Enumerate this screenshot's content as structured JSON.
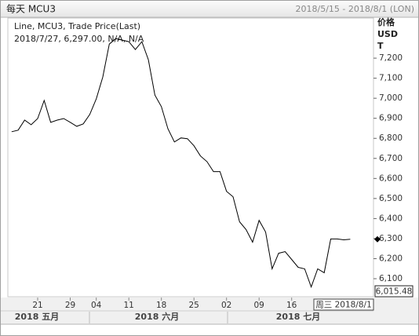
{
  "chart_data": {
    "type": "line",
    "title": "每天 MCU3",
    "subtitle": "2018/5/15 - 2018/8/1 (LON)",
    "y_axis_label": [
      "价格",
      "USD",
      "T"
    ],
    "annotation": "2018/7/27, 6,297.00, N/A, N/A",
    "categories": [
      null,
      null,
      null,
      null,
      "21",
      null,
      null,
      null,
      null,
      "29",
      null,
      null,
      null,
      "04",
      null,
      null,
      null,
      null,
      "11",
      null,
      null,
      null,
      null,
      "18",
      null,
      null,
      null,
      null,
      "25",
      null,
      null,
      null,
      null,
      "02",
      null,
      null,
      null,
      null,
      "09",
      null,
      null,
      null,
      null,
      "16",
      null,
      null,
      null,
      null,
      null,
      null,
      null,
      null,
      null
    ],
    "month_labels": [
      "2018 五月",
      "2018 六月",
      "2018 七月"
    ],
    "series": [
      {
        "name": "Line, MCU3, Trade Price(Last)",
        "color": "#000000",
        "values": [
          6833,
          6841,
          6891,
          6868,
          6899,
          6989,
          6880,
          6891,
          6899,
          6880,
          6860,
          6872,
          6919,
          6997,
          7106,
          7270,
          7298,
          7290,
          7282,
          7243,
          7282,
          7192,
          7016,
          6958,
          6848,
          6782,
          6802,
          6798,
          6763,
          6712,
          6684,
          6634,
          6634,
          6536,
          6509,
          6384,
          6345,
          6282,
          6391,
          6333,
          6149,
          6227,
          6235,
          6196,
          6157,
          6149,
          6059,
          6149,
          6130,
          6298,
          6298,
          6294,
          6297
        ]
      }
    ],
    "ylim": [
      6010,
      7400
    ],
    "yticks": [
      {
        "value": 6100,
        "label": "6,100"
      },
      {
        "value": 6200,
        "label": "6,200"
      },
      {
        "value": 6300,
        "label": "6,300"
      },
      {
        "value": 6400,
        "label": "6,400"
      },
      {
        "value": 6500,
        "label": "6,500"
      },
      {
        "value": 6600,
        "label": "6,600"
      },
      {
        "value": 6700,
        "label": "6,700"
      },
      {
        "value": 6800,
        "label": "6,800"
      },
      {
        "value": 6900,
        "label": "6,900"
      },
      {
        "value": 7000,
        "label": "7,000"
      },
      {
        "value": 7100,
        "label": "7,100"
      },
      {
        "value": 7200,
        "label": "7,200"
      }
    ],
    "cursor_date": "周三 2018/8/1",
    "cursor_value": "6,015.48",
    "grid": false
  }
}
